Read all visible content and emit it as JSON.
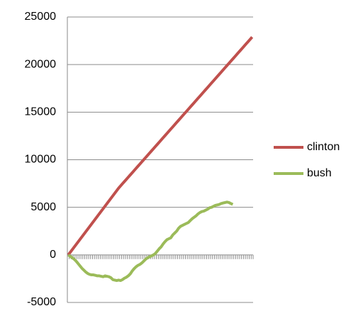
{
  "chart_data": {
    "type": "line",
    "categories": [
      null,
      null,
      null,
      null,
      null,
      null,
      null,
      null,
      null,
      null,
      null,
      null,
      null,
      null,
      null,
      null,
      null,
      null,
      null,
      null,
      null,
      null,
      null,
      null,
      null,
      null,
      null,
      null,
      null,
      null,
      null,
      null,
      null,
      null,
      null,
      null,
      null,
      null,
      null,
      null,
      null,
      null,
      null,
      null,
      null,
      null,
      null,
      null,
      null,
      null,
      null,
      null,
      null,
      null,
      null,
      null,
      null,
      null,
      null,
      null,
      null,
      null,
      null,
      null,
      null,
      null,
      null,
      null,
      null,
      null,
      null,
      null,
      null,
      null,
      null,
      null,
      null,
      null,
      null,
      null,
      null,
      null,
      null,
      null,
      null,
      null,
      null,
      null,
      null,
      null,
      null,
      null,
      null,
      null,
      null,
      null
    ],
    "series": [
      {
        "name": "clinton",
        "color": "#c0504d",
        "values": [
          0,
          270,
          540,
          810,
          1080,
          1350,
          1620,
          1890,
          2160,
          2430,
          2700,
          2970,
          3240,
          3510,
          3780,
          4050,
          4320,
          4590,
          4860,
          5130,
          5400,
          5670,
          5940,
          6210,
          6480,
          6750,
          7020,
          7250,
          7480,
          7710,
          7940,
          8170,
          8400,
          8630,
          8860,
          9090,
          9320,
          9550,
          9780,
          10010,
          10240,
          10470,
          10700,
          10930,
          11160,
          11390,
          11620,
          11850,
          12080,
          12310,
          12540,
          12770,
          13000,
          13230,
          13460,
          13690,
          13920,
          14150,
          14380,
          14610,
          14840,
          15070,
          15300,
          15530,
          15760,
          15990,
          16220,
          16450,
          16680,
          16910,
          17140,
          17370,
          17600,
          17830,
          18060,
          18290,
          18520,
          18750,
          18980,
          19210,
          19440,
          19670,
          19900,
          20130,
          20360,
          20590,
          20820,
          21050,
          21280,
          21510,
          21740,
          21970,
          22200,
          22430,
          22660,
          22890
        ]
      },
      {
        "name": "bush",
        "color": "#9bbb59",
        "values": [
          0,
          -150,
          -300,
          -450,
          -650,
          -900,
          -1150,
          -1400,
          -1600,
          -1800,
          -1950,
          -2050,
          -2100,
          -2100,
          -2150,
          -2200,
          -2200,
          -2250,
          -2300,
          -2200,
          -2250,
          -2300,
          -2400,
          -2600,
          -2650,
          -2700,
          -2650,
          -2700,
          -2600,
          -2450,
          -2350,
          -2200,
          -2000,
          -1700,
          -1450,
          -1250,
          -1100,
          -1000,
          -850,
          -650,
          -450,
          -300,
          -200,
          -100,
          0,
          150,
          400,
          650,
          850,
          1150,
          1400,
          1600,
          1700,
          1800,
          2100,
          2300,
          2500,
          2800,
          3000,
          3100,
          3200,
          3300,
          3400,
          3600,
          3800,
          3950,
          4100,
          4300,
          4450,
          4550,
          4600,
          4700,
          4800,
          4950,
          5000,
          5100,
          5200,
          5250,
          5300,
          5400,
          5450,
          5500,
          5550,
          5500,
          5400,
          5300,
          null,
          null,
          null,
          null,
          null,
          null,
          null,
          null,
          null,
          null
        ]
      }
    ],
    "ylim": [
      -5000,
      25000
    ],
    "yticks": [
      -5000,
      0,
      5000,
      10000,
      15000,
      20000,
      25000
    ],
    "grid": true,
    "legend": "right"
  }
}
